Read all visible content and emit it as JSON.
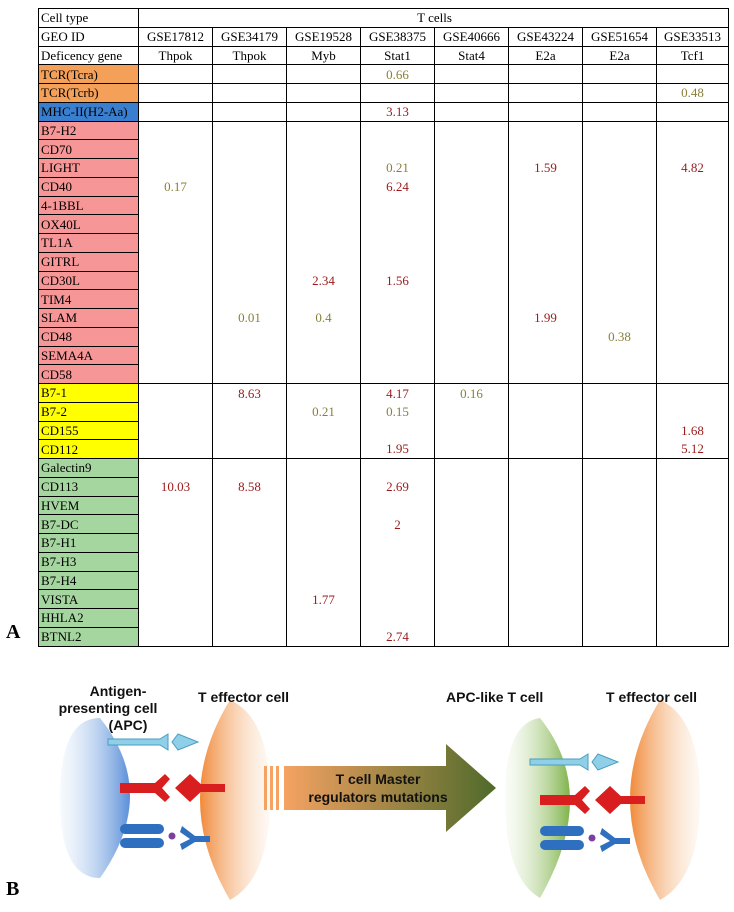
{
  "panel_a": {
    "label": "A",
    "header": {
      "cell_type_label": "Cell type",
      "cell_type_value": "T cells",
      "geo_label": "GEO ID",
      "geo_ids": [
        "GSE17812",
        "GSE34179",
        "GSE19528",
        "GSE38375",
        "GSE40666",
        "GSE43224",
        "GSE51654",
        "GSE33513"
      ],
      "gene_label": "Deficency gene",
      "genes": [
        "Thpok",
        "Thpok",
        "Myb",
        "Stat1",
        "Stat4",
        "E2a",
        "E2a",
        "Tcf1"
      ]
    },
    "colors": {
      "orange": "#f4a058",
      "blue": "#3a7fcf",
      "red": "#f79696",
      "yellow": "#ffff00",
      "green": "#a6d6a0",
      "value_red": "#9b1b1b",
      "value_olive": "#8a7f3a"
    },
    "groups": [
      {
        "color": "orange",
        "rows": [
          {
            "name": "TCR(Tcra)",
            "vals": [
              null,
              null,
              null,
              "0.66",
              null,
              null,
              null,
              null
            ],
            "tone": [
              null,
              null,
              null,
              "olive",
              null,
              null,
              null,
              null
            ]
          }
        ]
      },
      {
        "color": "orange",
        "rows": [
          {
            "name": "TCR(Tcrb)",
            "vals": [
              null,
              null,
              null,
              null,
              null,
              null,
              null,
              "0.48"
            ],
            "tone": [
              null,
              null,
              null,
              null,
              null,
              null,
              null,
              "olive"
            ]
          }
        ]
      },
      {
        "color": "blue",
        "rows": [
          {
            "name": "MHC-II(H2-Aa)",
            "vals": [
              null,
              null,
              null,
              "3.13",
              null,
              null,
              null,
              null
            ],
            "tone": [
              null,
              null,
              null,
              "red",
              null,
              null,
              null,
              null
            ]
          }
        ]
      },
      {
        "color": "red",
        "rows": [
          {
            "name": "B7-H2",
            "vals": [
              null,
              null,
              null,
              null,
              null,
              null,
              null,
              null
            ],
            "tone": []
          },
          {
            "name": "CD70",
            "vals": [
              null,
              null,
              null,
              null,
              null,
              null,
              null,
              null
            ],
            "tone": []
          },
          {
            "name": "LIGHT",
            "vals": [
              null,
              null,
              null,
              "0.21",
              null,
              "1.59",
              null,
              "4.82"
            ],
            "tone": [
              null,
              null,
              null,
              "olive",
              null,
              "red",
              null,
              "red"
            ]
          },
          {
            "name": "CD40",
            "vals": [
              "0.17",
              null,
              null,
              "6.24",
              null,
              null,
              null,
              null
            ],
            "tone": [
              "olive",
              null,
              null,
              "red",
              null,
              null,
              null,
              null
            ]
          },
          {
            "name": "4-1BBL",
            "vals": [
              null,
              null,
              null,
              null,
              null,
              null,
              null,
              null
            ],
            "tone": []
          },
          {
            "name": "OX40L",
            "vals": [
              null,
              null,
              null,
              null,
              null,
              null,
              null,
              null
            ],
            "tone": []
          },
          {
            "name": "TL1A",
            "vals": [
              null,
              null,
              null,
              null,
              null,
              null,
              null,
              null
            ],
            "tone": []
          },
          {
            "name": "GITRL",
            "vals": [
              null,
              null,
              null,
              null,
              null,
              null,
              null,
              null
            ],
            "tone": []
          },
          {
            "name": "CD30L",
            "vals": [
              null,
              null,
              "2.34",
              "1.56",
              null,
              null,
              null,
              null
            ],
            "tone": [
              null,
              null,
              "red",
              "red",
              null,
              null,
              null,
              null
            ]
          },
          {
            "name": "TIM4",
            "vals": [
              null,
              null,
              null,
              null,
              null,
              null,
              null,
              null
            ],
            "tone": []
          },
          {
            "name": "SLAM",
            "vals": [
              null,
              "0.01",
              "0.4",
              null,
              null,
              "1.99",
              null,
              null
            ],
            "tone": [
              null,
              "olive",
              "olive",
              null,
              null,
              "red",
              null,
              null
            ]
          },
          {
            "name": "CD48",
            "vals": [
              null,
              null,
              null,
              null,
              null,
              null,
              "0.38",
              null
            ],
            "tone": [
              null,
              null,
              null,
              null,
              null,
              null,
              "olive",
              null
            ]
          },
          {
            "name": "SEMA4A",
            "vals": [
              null,
              null,
              null,
              null,
              null,
              null,
              null,
              null
            ],
            "tone": []
          },
          {
            "name": "CD58",
            "vals": [
              null,
              null,
              null,
              null,
              null,
              null,
              null,
              null
            ],
            "tone": []
          }
        ]
      },
      {
        "color": "yellow",
        "rows": [
          {
            "name": "B7-1",
            "vals": [
              null,
              "8.63",
              null,
              "4.17",
              "0.16",
              null,
              null,
              null
            ],
            "tone": [
              null,
              "red",
              null,
              "red",
              "olive",
              null,
              null,
              null
            ]
          },
          {
            "name": "B7-2",
            "vals": [
              null,
              null,
              "0.21",
              "0.15",
              null,
              null,
              null,
              null
            ],
            "tone": [
              null,
              null,
              "olive",
              "olive",
              null,
              null,
              null,
              null
            ]
          },
          {
            "name": "CD155",
            "vals": [
              null,
              null,
              null,
              null,
              null,
              null,
              null,
              "1.68"
            ],
            "tone": [
              null,
              null,
              null,
              null,
              null,
              null,
              null,
              "red"
            ]
          },
          {
            "name": "CD112",
            "vals": [
              null,
              null,
              null,
              "1.95",
              null,
              null,
              null,
              "5.12"
            ],
            "tone": [
              null,
              null,
              null,
              "red",
              null,
              null,
              null,
              "red"
            ]
          }
        ]
      },
      {
        "color": "green",
        "rows": [
          {
            "name": "Galectin9",
            "vals": [
              null,
              null,
              null,
              null,
              null,
              null,
              null,
              null
            ],
            "tone": []
          },
          {
            "name": "CD113",
            "vals": [
              "10.03",
              "8.58",
              null,
              "2.69",
              null,
              null,
              null,
              null
            ],
            "tone": [
              "red",
              "red",
              null,
              "red",
              null,
              null,
              null,
              null
            ]
          },
          {
            "name": "HVEM",
            "vals": [
              null,
              null,
              null,
              null,
              null,
              null,
              null,
              null
            ],
            "tone": []
          },
          {
            "name": "B7-DC",
            "vals": [
              null,
              null,
              null,
              "2",
              null,
              null,
              null,
              null
            ],
            "tone": [
              null,
              null,
              null,
              "red",
              null,
              null,
              null,
              null
            ]
          },
          {
            "name": "B7-H1",
            "vals": [
              null,
              null,
              null,
              null,
              null,
              null,
              null,
              null
            ],
            "tone": []
          },
          {
            "name": "B7-H3",
            "vals": [
              null,
              null,
              null,
              null,
              null,
              null,
              null,
              null
            ],
            "tone": []
          },
          {
            "name": "B7-H4",
            "vals": [
              null,
              null,
              null,
              null,
              null,
              null,
              null,
              null
            ],
            "tone": []
          },
          {
            "name": "VISTA",
            "vals": [
              null,
              null,
              "1.77",
              null,
              null,
              null,
              null,
              null
            ],
            "tone": [
              null,
              null,
              "red",
              null,
              null,
              null,
              null,
              null
            ]
          },
          {
            "name": "HHLA2",
            "vals": [
              null,
              null,
              null,
              null,
              null,
              null,
              null,
              null
            ],
            "tone": []
          },
          {
            "name": "BTNL2",
            "vals": [
              null,
              null,
              null,
              "2.74",
              null,
              null,
              null,
              null
            ],
            "tone": [
              null,
              null,
              null,
              "red",
              null,
              null,
              null,
              null
            ]
          }
        ]
      }
    ]
  },
  "panel_b": {
    "label": "B",
    "apc_label_lines": [
      "Antigen-",
      "presenting cell",
      "(APC)"
    ],
    "teff_left_label": "T effector cell",
    "arrow_label_lines": [
      "T cell Master",
      "regulators mutations"
    ],
    "apc_like_label": "APC-like T cell",
    "teff_right_label": "T effector cell",
    "colors": {
      "apc_blue": "#5a8fd8",
      "teff_orange": "#f08a3a",
      "apc_like_green": "#7fb34a",
      "receptor_cyan": "#8fd0e8",
      "receptor_red": "#d81e1e",
      "receptor_blue": "#2f6fbf",
      "arrow_start": "#f5a262",
      "arrow_end": "#4e6a2a"
    }
  }
}
